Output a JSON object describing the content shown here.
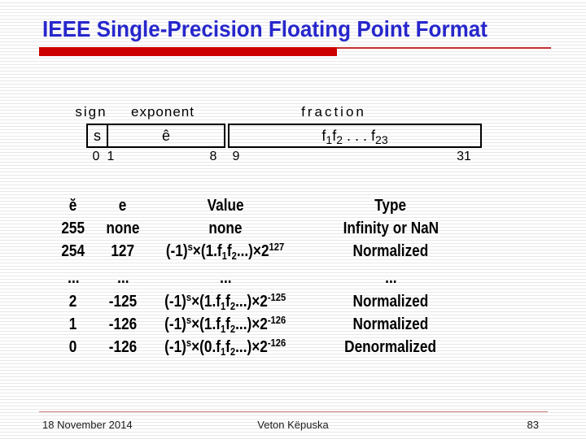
{
  "slide": {
    "title": "IEEE Single-Precision Floating Point Format"
  },
  "colors": {
    "title_blue": "#2727cc",
    "accent_red": "#cc0000",
    "thin_rule_red": "#c53030",
    "footer_rule_pink": "#cc8080",
    "stripe_gray": "#e8e8e8"
  },
  "diagram": {
    "sign_label": "sign",
    "exponent_label": "exponent",
    "fraction_label": "fraction",
    "sign_field": "s",
    "exponent_field": "ê",
    "fraction_field": [
      [
        "n",
        "f"
      ],
      [
        "sub",
        "1"
      ],
      [
        "n",
        "f"
      ],
      [
        "sub",
        "2"
      ],
      [
        "n",
        " . . . f"
      ],
      [
        "sub",
        "23"
      ]
    ],
    "bits": {
      "b0": "0",
      "b1": "1",
      "b8": "8",
      "b9": "9",
      "b31": "31"
    }
  },
  "table": {
    "headers": {
      "ebar": "ĕ",
      "e": "e",
      "value": "Value",
      "type": "Type"
    },
    "rows": [
      {
        "ebar": "255",
        "e": "none",
        "value": [
          [
            "n",
            "none"
          ]
        ],
        "type": "Infinity or NaN"
      },
      {
        "ebar": "254",
        "e": "127",
        "value": [
          [
            "n",
            "(-1)"
          ],
          [
            "sup",
            "s"
          ],
          [
            "n",
            "×(1.f"
          ],
          [
            "sub",
            "1"
          ],
          [
            "n",
            "f"
          ],
          [
            "sub",
            "2"
          ],
          [
            "n",
            "...)×2"
          ],
          [
            "sup",
            "127"
          ]
        ],
        "type": "Normalized"
      },
      {
        "ebar": "...",
        "e": "...",
        "value": [
          [
            "n",
            "..."
          ]
        ],
        "type": "..."
      },
      {
        "ebar": "2",
        "e": "-125",
        "value": [
          [
            "n",
            "(-1)"
          ],
          [
            "sup",
            "s"
          ],
          [
            "n",
            "×(1.f"
          ],
          [
            "sub",
            "1"
          ],
          [
            "n",
            "f"
          ],
          [
            "sub",
            "2"
          ],
          [
            "n",
            "...)×2"
          ],
          [
            "sup",
            "-125"
          ]
        ],
        "type": "Normalized"
      },
      {
        "ebar": "1",
        "e": "-126",
        "value": [
          [
            "n",
            "(-1)"
          ],
          [
            "sup",
            "s"
          ],
          [
            "n",
            "×(1.f"
          ],
          [
            "sub",
            "1"
          ],
          [
            "n",
            "f"
          ],
          [
            "sub",
            "2"
          ],
          [
            "n",
            "...)×2"
          ],
          [
            "sup",
            "-126"
          ]
        ],
        "type": "Normalized"
      },
      {
        "ebar": "0",
        "e": "-126",
        "value": [
          [
            "n",
            "(-1)"
          ],
          [
            "sup",
            "s"
          ],
          [
            "n",
            "×(0.f"
          ],
          [
            "sub",
            "1"
          ],
          [
            "n",
            "f"
          ],
          [
            "sub",
            "2"
          ],
          [
            "n",
            "...)×2"
          ],
          [
            "sup",
            "-126"
          ]
        ],
        "type": "Denormalized"
      }
    ]
  },
  "footer": {
    "date": "18 November 2014",
    "author": "Veton Këpuska",
    "page": "83"
  }
}
